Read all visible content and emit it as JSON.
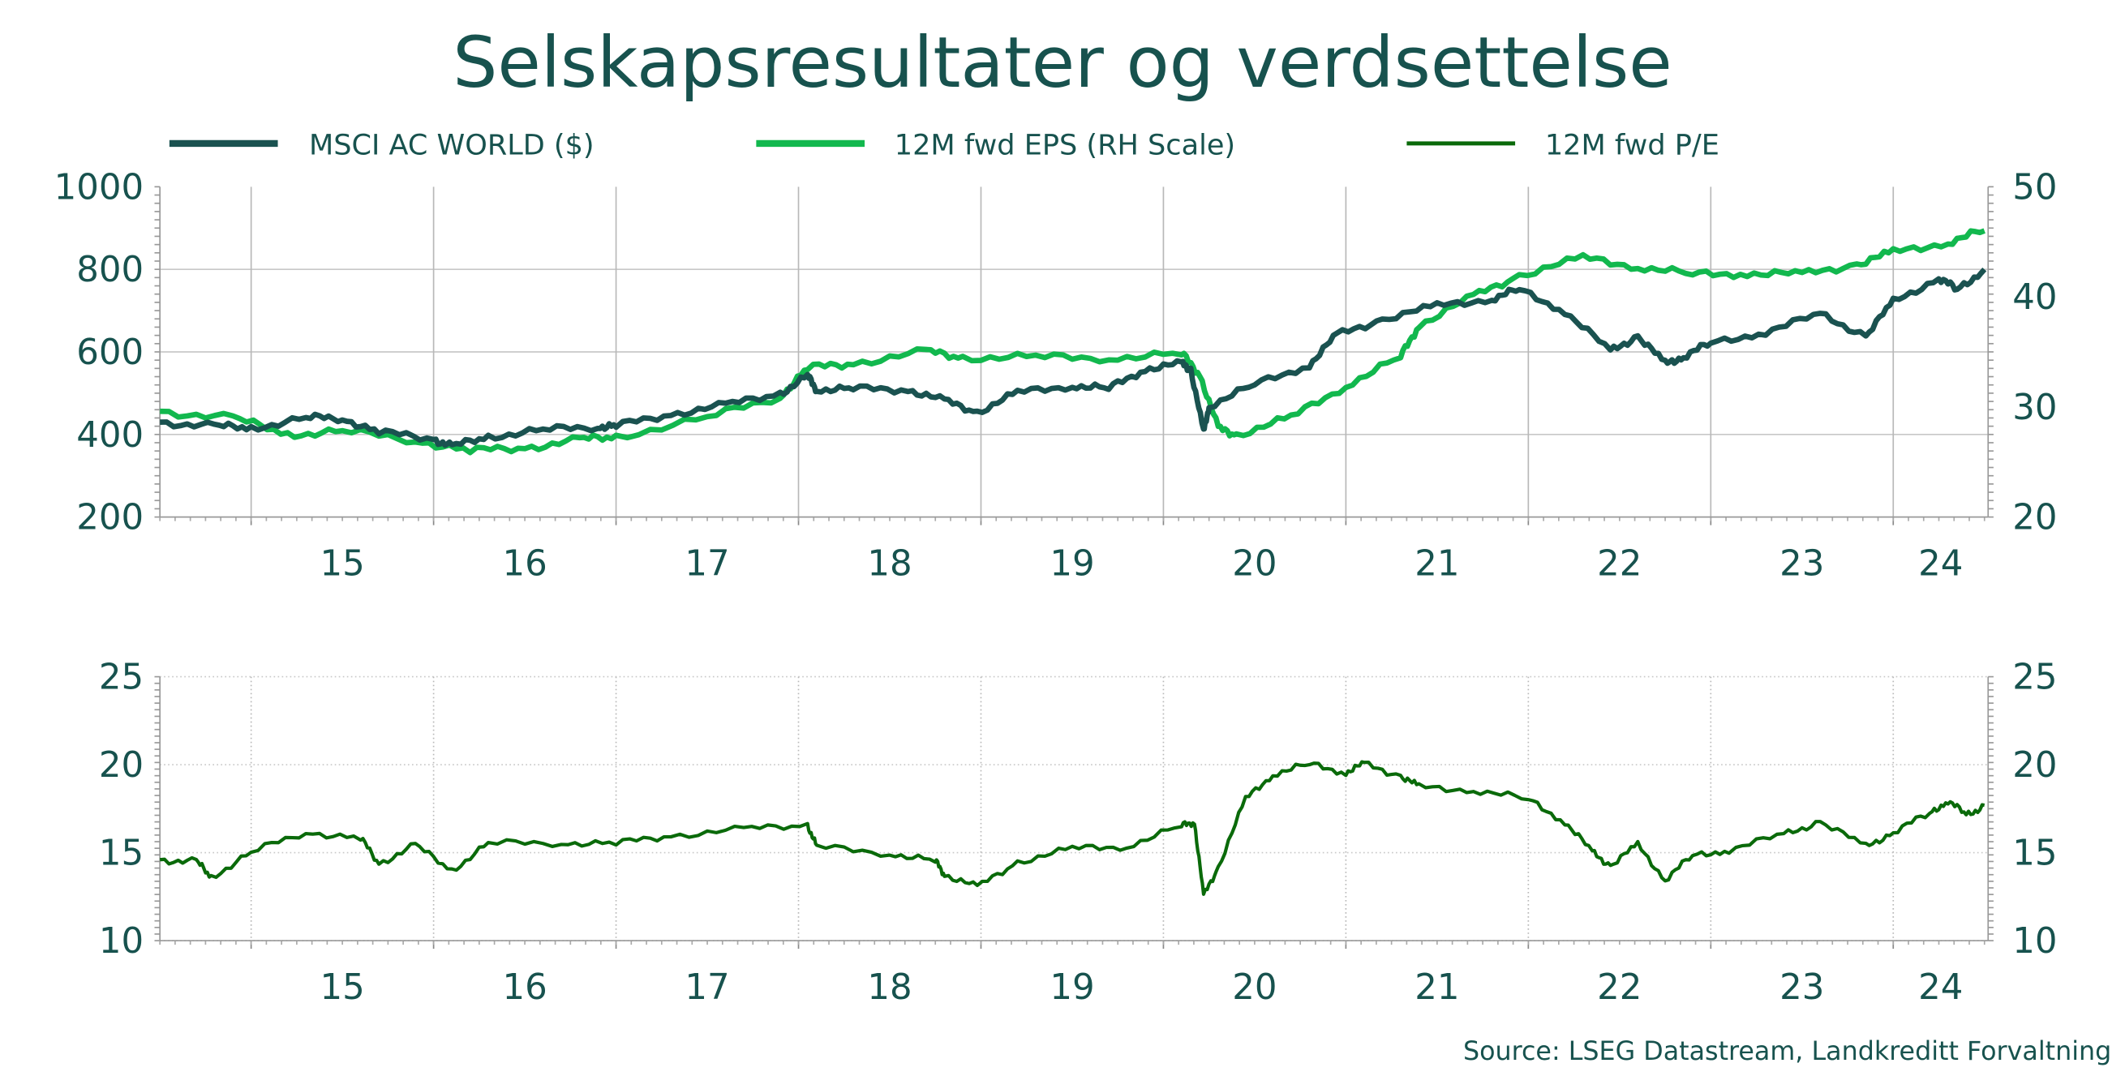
{
  "title": "Selskapsresultater og verdsettelse",
  "source": "Source: LSEG Datastream, Landkreditt Forvaltning",
  "colors": {
    "text": "#17524e",
    "msci": "#1a5250",
    "eps": "#12b84e",
    "pe": "#0a6a0a"
  },
  "legend": [
    {
      "label": "MSCI AC WORLD ($)",
      "color": "#1a5250"
    },
    {
      "label": "12M fwd EPS (RH Scale)",
      "color": "#12b84e"
    },
    {
      "label": "12M fwd P/E",
      "color": "#0a6a0a"
    }
  ],
  "chart_data": [
    {
      "type": "line",
      "legend_placement": "top",
      "grid": true,
      "x_tick_labels": [
        "15",
        "16",
        "17",
        "18",
        "19",
        "20",
        "21",
        "22",
        "23",
        "24"
      ],
      "xlim": [
        2014.5,
        2024.52
      ],
      "ylim_left": [
        200,
        1000
      ],
      "yticks_left": [
        "200",
        "400",
        "600",
        "800",
        "1000"
      ],
      "ylim_right": [
        20,
        50
      ],
      "yticks_right": [
        "20",
        "30",
        "40",
        "50"
      ],
      "series": [
        {
          "name": "MSCI AC WORLD ($)",
          "axis": "left",
          "x": [
            2014.5,
            2014.8,
            2015.0,
            2015.3,
            2015.5,
            2015.7,
            2016.0,
            2016.1,
            2016.3,
            2016.6,
            2016.9,
            2017.0,
            2017.3,
            2017.6,
            2017.9,
            2018.05,
            2018.1,
            2018.3,
            2018.6,
            2018.8,
            2018.98,
            2019.2,
            2019.5,
            2019.7,
            2019.9,
            2020.1,
            2020.15,
            2020.22,
            2020.25,
            2020.5,
            2020.8,
            2020.95,
            2021.2,
            2021.5,
            2021.8,
            2021.95,
            2022.2,
            2022.45,
            2022.6,
            2022.75,
            2022.85,
            2023.0,
            2023.3,
            2023.6,
            2023.85,
            2024.0,
            2024.25,
            2024.35,
            2024.5
          ],
          "y": [
            430,
            420,
            415,
            440,
            440,
            405,
            390,
            370,
            395,
            410,
            420,
            420,
            450,
            470,
            500,
            540,
            510,
            510,
            510,
            480,
            455,
            500,
            520,
            510,
            560,
            570,
            560,
            405,
            470,
            520,
            570,
            640,
            680,
            710,
            730,
            750,
            700,
            600,
            640,
            570,
            590,
            620,
            650,
            690,
            640,
            720,
            780,
            750,
            800
          ]
        },
        {
          "name": "12M fwd EPS (RH Scale)",
          "axis": "right",
          "x": [
            2014.5,
            2014.9,
            2015.2,
            2015.5,
            2015.9,
            2016.2,
            2016.5,
            2016.8,
            2017.0,
            2017.5,
            2017.9,
            2018.05,
            2018.3,
            2018.7,
            2018.9,
            2019.3,
            2019.7,
            2020.1,
            2020.2,
            2020.3,
            2020.4,
            2020.7,
            2021.0,
            2021.3,
            2021.4,
            2021.7,
            2021.95,
            2022.3,
            2022.6,
            2022.9,
            2023.2,
            2023.5,
            2023.8,
            2024.0,
            2024.3,
            2024.5
          ],
          "y": [
            29.6,
            29,
            27.5,
            27.8,
            27,
            26,
            26.3,
            27,
            27.3,
            29,
            31,
            33.5,
            34,
            35,
            34.5,
            34.5,
            34.5,
            34.8,
            33,
            28,
            27.5,
            29,
            32,
            34.5,
            37.5,
            40,
            42,
            43.5,
            42.8,
            42,
            42.2,
            42,
            43,
            44,
            45,
            46
          ]
        }
      ]
    },
    {
      "type": "line",
      "grid": true,
      "x_tick_labels": [
        "15",
        "16",
        "17",
        "18",
        "19",
        "20",
        "21",
        "22",
        "23",
        "24"
      ],
      "xlim": [
        2014.5,
        2024.52
      ],
      "ylim": [
        10,
        25
      ],
      "yticks": [
        "10",
        "15",
        "20",
        "25"
      ],
      "series": [
        {
          "name": "12M fwd P/E",
          "x": [
            2014.5,
            2014.7,
            2014.78,
            2015.0,
            2015.3,
            2015.6,
            2015.7,
            2015.9,
            2016.1,
            2016.3,
            2016.7,
            2017.0,
            2017.3,
            2017.7,
            2018.05,
            2018.1,
            2018.5,
            2018.75,
            2018.8,
            2018.98,
            2019.2,
            2019.5,
            2019.8,
            2020.1,
            2020.17,
            2020.22,
            2020.3,
            2020.45,
            2020.6,
            2020.8,
            2021.0,
            2021.1,
            2021.3,
            2021.4,
            2021.7,
            2022.0,
            2022.2,
            2022.35,
            2022.45,
            2022.6,
            2022.75,
            2022.9,
            2023.1,
            2023.4,
            2023.6,
            2023.85,
            2024.0,
            2024.2,
            2024.3,
            2024.4,
            2024.5
          ],
          "y": [
            14.6,
            14.5,
            13.6,
            15,
            16.2,
            15.8,
            14.4,
            15.4,
            14,
            15.5,
            15.6,
            15.5,
            16,
            16.3,
            16.6,
            15.3,
            15,
            14.5,
            13.8,
            13,
            14.5,
            15.2,
            15.4,
            16.5,
            16.8,
            12.5,
            14.2,
            18,
            19.5,
            20,
            19.6,
            20,
            19.4,
            18.7,
            18.6,
            18,
            16.8,
            15,
            14.3,
            15.4,
            13.5,
            14.8,
            15.2,
            16,
            16.8,
            15.3,
            16.2,
            17.2,
            18,
            17.1,
            17.7
          ]
        }
      ]
    }
  ]
}
